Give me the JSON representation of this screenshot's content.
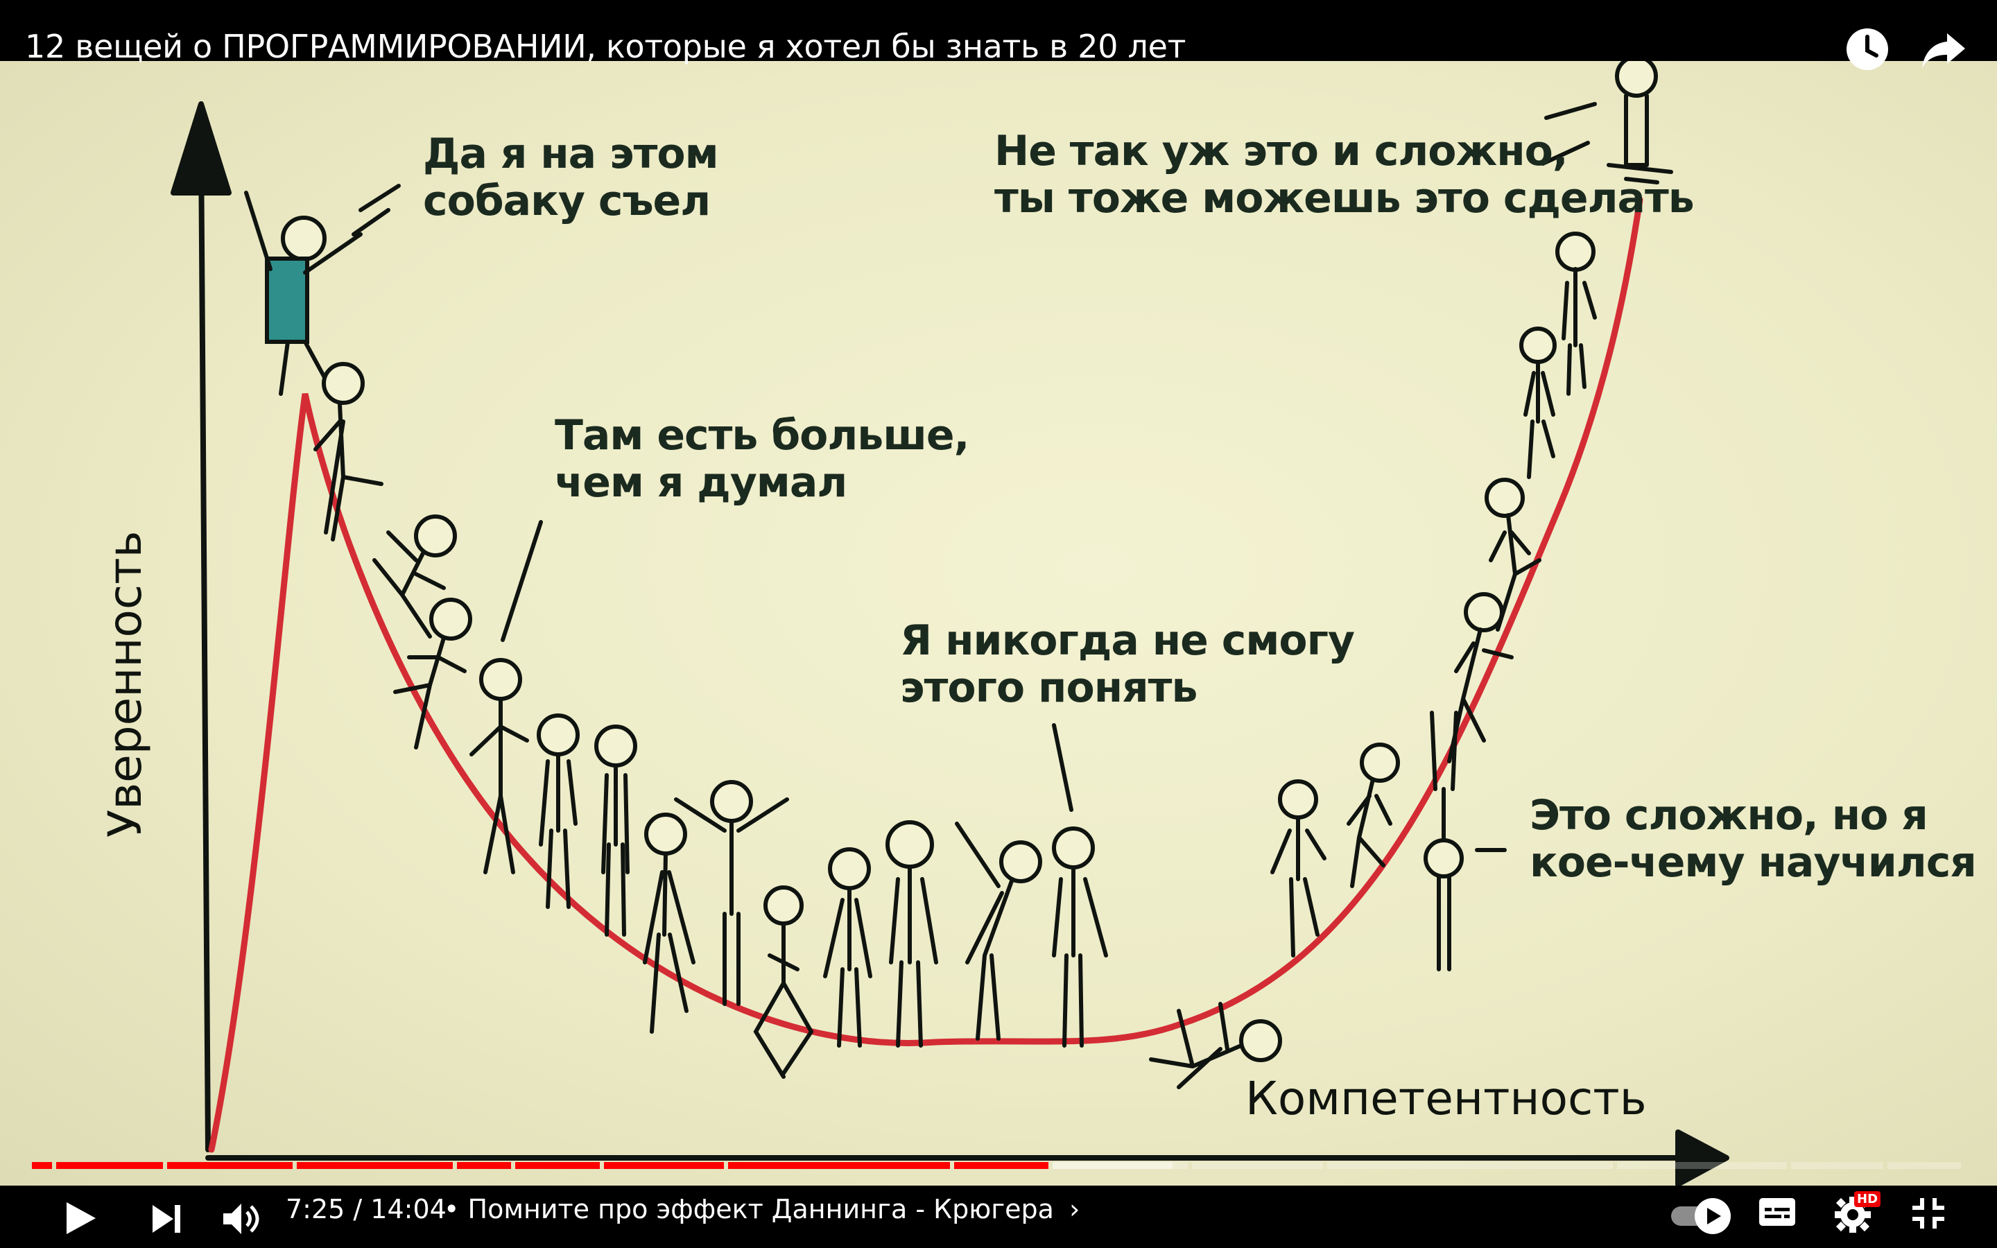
{
  "video": {
    "title": "12 вещей о ПРОГРАММИРОВАНИИ, которые я хотел бы знать в 20 лет"
  },
  "top_icons": [
    "clock-icon",
    "share-icon"
  ],
  "frame": {
    "y_axis_label": "Уверенность",
    "x_axis_label": "Компетентность",
    "annotations": [
      {
        "id": "peak",
        "text": "Да я на этом\nсобаку съел"
      },
      {
        "id": "more",
        "text": "Там есть больше,\nчем я думал"
      },
      {
        "id": "never",
        "text": "Я никогда не смогу\nэтого понять"
      },
      {
        "id": "hard",
        "text": "Это сложно, но я\nкое-чему научился"
      },
      {
        "id": "easy",
        "text": "Не так уж это и сложно,\nты тоже можешь это сделать"
      }
    ],
    "curve_color": "#d42c34",
    "figure_accent": "#2f8f8a"
  },
  "player": {
    "time": "7:25 / 14:04",
    "chapter": "• Помните про эффект Даннинга - Крюгера",
    "played_fraction": 0.528,
    "buffered_fraction": 0.59,
    "chapter_ends": [
      0.0125,
      0.07,
      0.137,
      0.22,
      0.25,
      0.296,
      0.36,
      0.477,
      0.528,
      0.6,
      0.67,
      0.82,
      0.91,
      0.96
    ],
    "hd_badge": "HD",
    "accent": "#ff0000",
    "controls": [
      "play-icon",
      "next-icon",
      "volume-icon",
      "autoplay-toggle",
      "subtitles-icon",
      "settings-icon",
      "exit-fullscreen-icon"
    ]
  }
}
